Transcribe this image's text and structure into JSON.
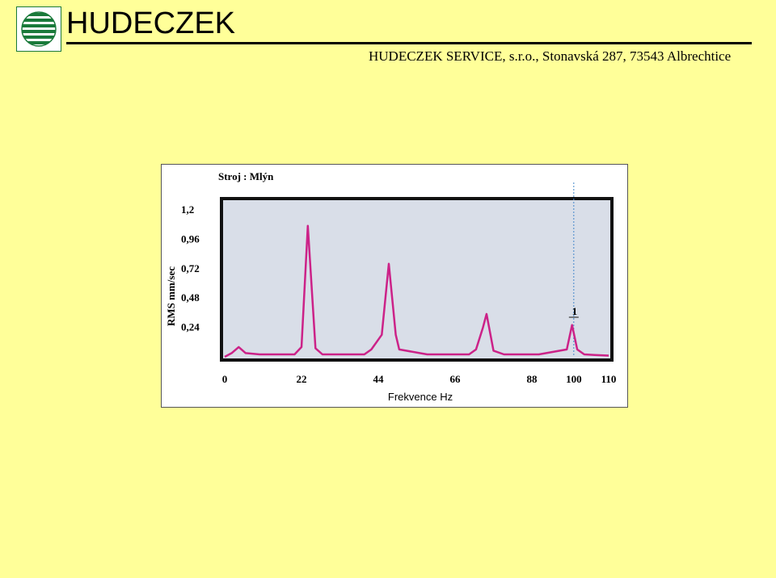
{
  "header": {
    "brand": "HUDECZEK",
    "company_line": "HUDECZEK SERVICE, s.r.o., Stonavská 287, 73543 Albrechtice",
    "logo_icon": "hudeczek-globe-logo-icon",
    "logo_color": "#1a7a3a"
  },
  "colors": {
    "slide_background": "#ffff99",
    "plot_background": "#d9dee8",
    "series_color": "#cc2288",
    "cursor_color": "#4488cc"
  },
  "chart_data": {
    "type": "line",
    "title": "Stroj : Mlýn",
    "xlabel": "Frekvence Hz",
    "ylabel": "RMS mm/sec",
    "xlim": [
      0,
      110
    ],
    "ylim": [
      0,
      1.2
    ],
    "x_ticks": [
      {
        "value": 0,
        "label": "0"
      },
      {
        "value": 22,
        "label": "22"
      },
      {
        "value": 44,
        "label": "44"
      },
      {
        "value": 66,
        "label": "66"
      },
      {
        "value": 88,
        "label": "88"
      },
      {
        "value": 100,
        "label": "100"
      },
      {
        "value": 110,
        "label": "110"
      }
    ],
    "y_ticks": [
      {
        "value": 1.2,
        "label": "1,2"
      },
      {
        "value": 0.96,
        "label": "0,96"
      },
      {
        "value": 0.72,
        "label": "0,72"
      },
      {
        "value": 0.48,
        "label": "0,48"
      },
      {
        "value": 0.24,
        "label": "0,24"
      }
    ],
    "grid": false,
    "legend": "none",
    "series": [
      {
        "x": [
          0,
          2,
          4,
          6,
          10,
          20,
          22,
          23.8,
          26,
          28,
          30,
          40,
          42,
          45,
          47,
          49,
          50,
          58,
          70,
          72,
          74,
          75,
          77,
          80,
          90,
          98,
          99.5,
          101,
          103,
          106,
          110
        ],
        "y": [
          0,
          0.03,
          0.08,
          0.03,
          0.02,
          0.02,
          0.08,
          1.07,
          0.07,
          0.02,
          0.02,
          0.02,
          0.06,
          0.18,
          0.76,
          0.18,
          0.06,
          0.02,
          0.02,
          0.06,
          0.24,
          0.35,
          0.05,
          0.02,
          0.02,
          0.06,
          0.26,
          0.06,
          0.02,
          0.015,
          0.01
        ]
      }
    ],
    "annotations": [
      {
        "x": 100,
        "label": "1"
      }
    ]
  }
}
